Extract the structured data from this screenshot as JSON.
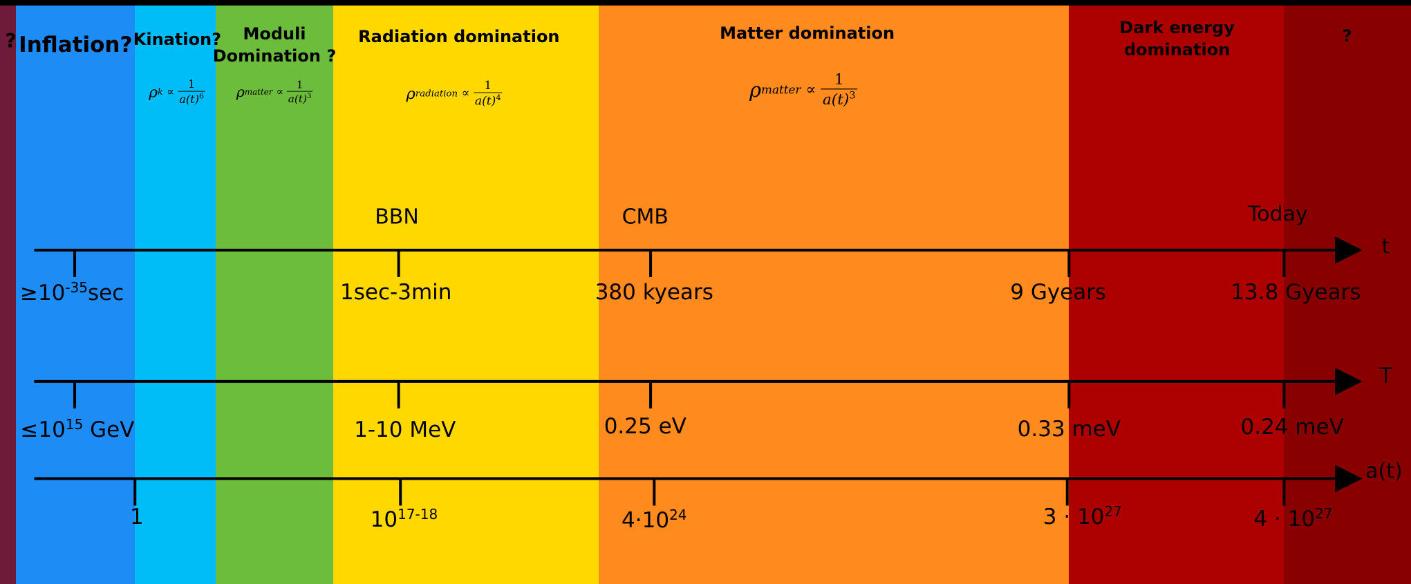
{
  "bands": [
    {
      "title": [
        "?"
      ]
    },
    {
      "title": [
        "Inflation?"
      ]
    },
    {
      "title": [
        "Kination?"
      ],
      "formula": {
        "symbol": "ρ",
        "subscript": "k",
        "relation": "∝",
        "numerator": "1",
        "denominator": "a(t)",
        "exponent": "6"
      }
    },
    {
      "title": [
        "Moduli",
        "Domination ?"
      ],
      "formula": {
        "symbol": "ρ",
        "subscript": "matter",
        "relation": "∝",
        "numerator": "1",
        "denominator": "a(t)",
        "exponent": "3"
      }
    },
    {
      "title": [
        "Radiation domination"
      ],
      "formula": {
        "symbol": "ρ",
        "subscript": "radiation",
        "relation": "∝",
        "numerator": "1",
        "denominator": "a(t)",
        "exponent": "4"
      }
    },
    {
      "title": [
        "Matter domination"
      ],
      "formula": {
        "symbol": "ρ",
        "subscript": "matter",
        "relation": "∝",
        "numerator": "1",
        "denominator": "a(t)",
        "exponent": "3"
      }
    },
    {
      "title": [
        "Dark energy",
        "domination"
      ]
    },
    {
      "title": [
        "?"
      ]
    }
  ],
  "events": [
    "BBN",
    "CMB",
    "Today"
  ],
  "axes": [
    {
      "name": "t",
      "labels": [
        {
          "text": "≥10",
          "sup": "-35",
          "after": "sec"
        },
        {
          "text": "1sec-3min"
        },
        {
          "text": "380 kyears"
        },
        {
          "text": "9 Gyears"
        },
        {
          "text": "13.8 Gyears"
        }
      ]
    },
    {
      "name": "T",
      "labels": [
        {
          "text": "≤10",
          "sup": "15",
          "after": " GeV"
        },
        {
          "text": "1-10 MeV"
        },
        {
          "text": "0.25 eV"
        },
        {
          "text": "0.33 meV"
        },
        {
          "text": "0.24 meV"
        }
      ]
    },
    {
      "name": "a(t)",
      "labels": [
        {
          "text": "1"
        },
        {
          "text": "10",
          "sup": "17-18"
        },
        {
          "text": "4·10",
          "sup": "24"
        },
        {
          "text": "3 · 10",
          "sup": "27"
        },
        {
          "text": "4 · 10",
          "sup": "27"
        }
      ]
    }
  ]
}
